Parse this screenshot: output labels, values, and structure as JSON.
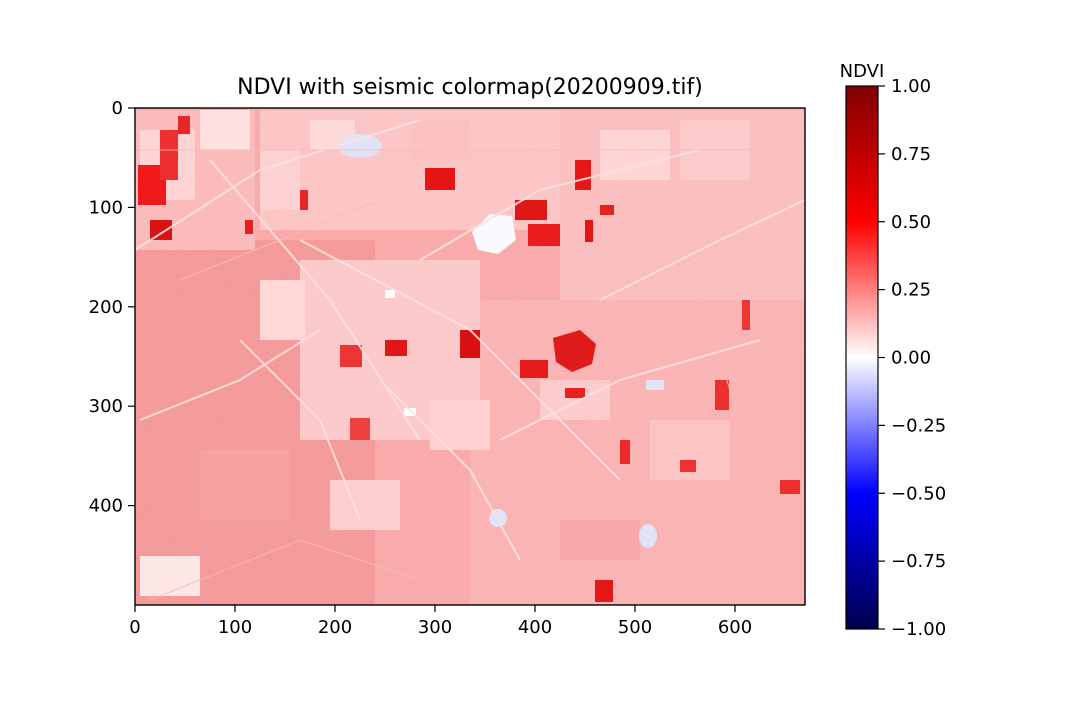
{
  "chart_data": {
    "type": "heatmap",
    "title": "NDVI with seismic colormap(20200909.tif)",
    "colormap": "seismic",
    "image_extent": {
      "x": [
        0,
        670
      ],
      "y": [
        0,
        500
      ]
    },
    "x_ticks": [
      0,
      100,
      200,
      300,
      400,
      500,
      600
    ],
    "x_tick_labels": [
      "0",
      "100",
      "200",
      "300",
      "400",
      "500",
      "600"
    ],
    "y_ticks": [
      0,
      100,
      200,
      300,
      400
    ],
    "y_tick_labels": [
      "0",
      "100",
      "200",
      "300",
      "400"
    ],
    "y_inverted": true,
    "colorbar": {
      "label": "NDVI",
      "range": [
        -1.0,
        1.0
      ],
      "ticks": [
        1.0,
        0.75,
        0.5,
        0.25,
        0.0,
        -0.25,
        -0.5,
        -0.75,
        -1.0
      ],
      "tick_labels": [
        "1.00",
        "0.75",
        "0.50",
        "0.25",
        "0.00",
        "−0.25",
        "−0.50",
        "−0.75",
        "−1.00"
      ]
    },
    "colors": {
      "seismic_stops": [
        "#00004c",
        "#0000ff",
        "#ffffff",
        "#ff0000",
        "#7f0000"
      ],
      "background_field": "#f9a8a8"
    }
  }
}
